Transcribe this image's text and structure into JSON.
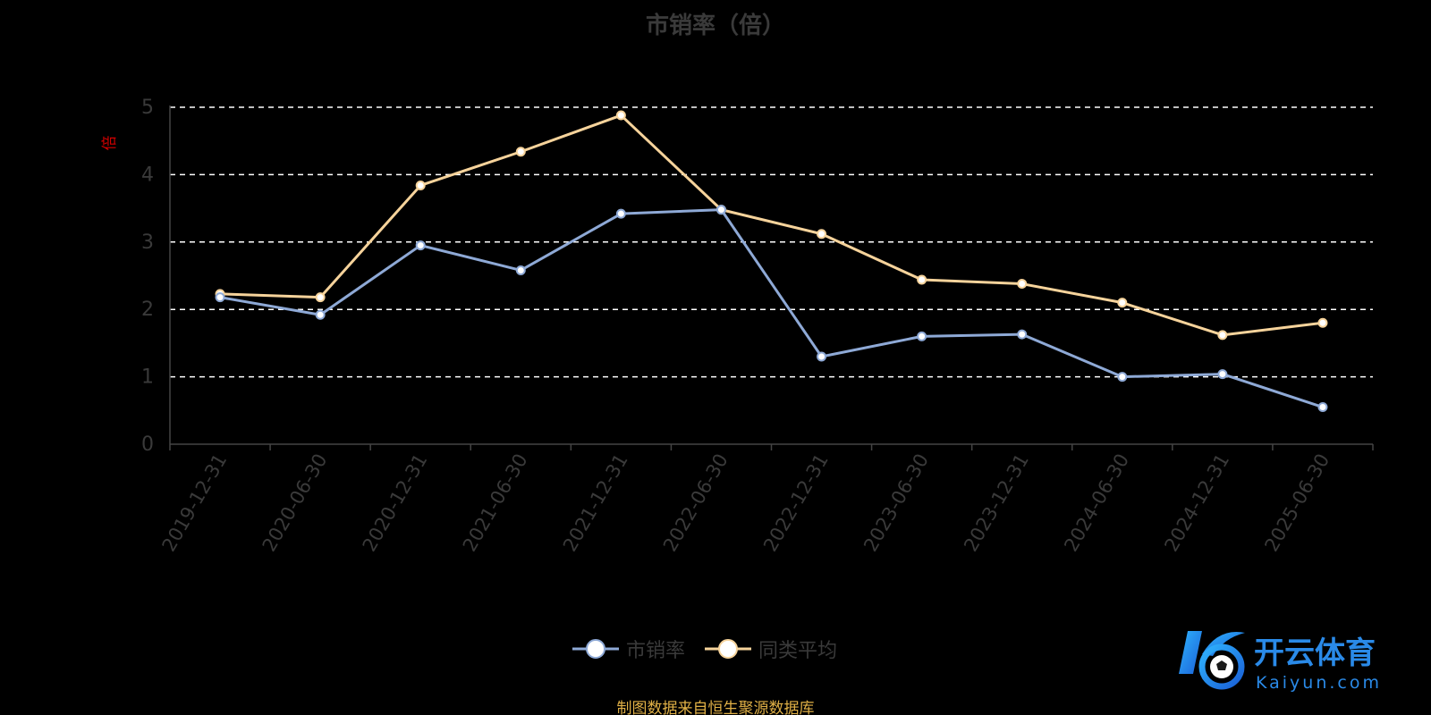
{
  "chart_data": {
    "type": "line",
    "title": "市销率（倍）",
    "ylabel": "倍",
    "xlabel": "",
    "ylim": [
      0,
      5
    ],
    "yticks": [
      "0",
      "1",
      "2",
      "3",
      "4",
      "5"
    ],
    "grid": true,
    "legend_position": "bottom",
    "categories": [
      "2019-12-31",
      "2020-06-30",
      "2020-12-31",
      "2021-06-30",
      "2021-12-31",
      "2022-06-30",
      "2022-12-31",
      "2023-06-30",
      "2023-12-31",
      "2024-06-30",
      "2024-12-31",
      "2025-06-30"
    ],
    "series": [
      {
        "name": "市销率",
        "color": "#8ea9d6",
        "values": [
          2.18,
          1.92,
          2.95,
          2.58,
          3.42,
          3.48,
          1.3,
          1.6,
          1.63,
          1.0,
          1.04,
          0.55
        ]
      },
      {
        "name": "同类平均",
        "color": "#f6d39b",
        "values": [
          2.23,
          2.18,
          3.84,
          4.34,
          4.88,
          3.48,
          3.12,
          2.44,
          2.38,
          2.1,
          1.62,
          1.8
        ]
      }
    ]
  },
  "colors": {
    "axis": "#444444",
    "grid": "#ffffff",
    "tick_text": "#3a3a3a",
    "ylabel": "#d40000",
    "source": "#e0b046"
  },
  "footer": {
    "source": "制图数据来自恒生聚源数据库"
  },
  "watermark": {
    "brand_cn": "开云体育",
    "brand_en": "Kaiyun.com",
    "icon": "kaiyun-ball-logo-icon"
  }
}
